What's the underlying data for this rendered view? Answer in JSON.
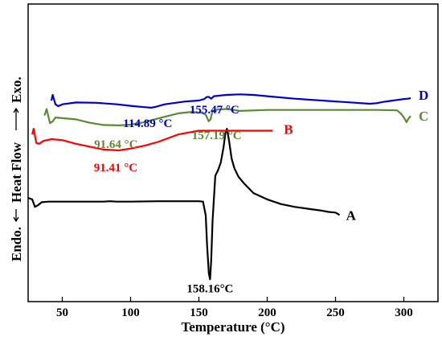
{
  "chart_data": {
    "type": "line",
    "xlabel": "Temperature (°C)",
    "ylabel": "Endo.⟵   Heat Flow   ⟶ Exo.",
    "ylabel_parts": {
      "endo": "Endo.",
      "heat_flow": "Heat Flow",
      "exo": "Exo."
    },
    "xlim": [
      25,
      325
    ],
    "x_ticks": [
      50,
      100,
      150,
      200,
      250,
      300
    ],
    "x_tick_labels": [
      "50",
      "100",
      "150",
      "200",
      "250",
      "300"
    ],
    "y_ticks_shown": false,
    "y_units": "relative heat flow (offset curves)",
    "ylim": [
      0,
      100
    ],
    "series": [
      {
        "name": "A",
        "color": "#000000",
        "points": [
          [
            25,
            45.3
          ],
          [
            28,
            44.5
          ],
          [
            30,
            40.5
          ],
          [
            32,
            41.3
          ],
          [
            35,
            43
          ],
          [
            40,
            43.3
          ],
          [
            50,
            43.3
          ],
          [
            70,
            43.3
          ],
          [
            80,
            43.3
          ],
          [
            85,
            43.5
          ],
          [
            90,
            43.3
          ],
          [
            100,
            43.3
          ],
          [
            120,
            43.5
          ],
          [
            140,
            43.5
          ],
          [
            150,
            43.5
          ],
          [
            153,
            43.3
          ],
          [
            155,
            36
          ],
          [
            156,
            20
          ],
          [
            157.3,
            5
          ],
          [
            158.16,
            2
          ],
          [
            159,
            12
          ],
          [
            160,
            33
          ],
          [
            162,
            57
          ],
          [
            164,
            60
          ],
          [
            166,
            64
          ],
          [
            168,
            72
          ],
          [
            169.5,
            80
          ],
          [
            170.5,
            82
          ],
          [
            172,
            76
          ],
          [
            174,
            66
          ],
          [
            176,
            61
          ],
          [
            179,
            56.5
          ],
          [
            183,
            53
          ],
          [
            190,
            47.8
          ],
          [
            200,
            44.5
          ],
          [
            210,
            42
          ],
          [
            220,
            40.5
          ],
          [
            230,
            39.5
          ],
          [
            240,
            38.5
          ],
          [
            245,
            37.8
          ],
          [
            250,
            37.5
          ],
          [
            253,
            36.2
          ]
        ],
        "annotations": [
          {
            "x": 158.16,
            "label": "158.16°C"
          }
        ]
      },
      {
        "name": "B",
        "color": "#ff0000",
        "points": [
          [
            28,
            79
          ],
          [
            29,
            82
          ],
          [
            31,
            74.5
          ],
          [
            33,
            74
          ],
          [
            36,
            75.5
          ],
          [
            42,
            76.5
          ],
          [
            50,
            76
          ],
          [
            60,
            74
          ],
          [
            70,
            72.5
          ],
          [
            80,
            71
          ],
          [
            91.41,
            70.5
          ],
          [
            100,
            71.5
          ],
          [
            110,
            73
          ],
          [
            120,
            75
          ],
          [
            135,
            79
          ],
          [
            150,
            81
          ],
          [
            160,
            81
          ],
          [
            180,
            81
          ],
          [
            204,
            81
          ]
        ],
        "annotations": [
          {
            "x": 91.41,
            "label": "91.41 °C"
          }
        ]
      },
      {
        "name": "C",
        "color": "#5a8a32",
        "points": [
          [
            37,
            89
          ],
          [
            38.5,
            92.5
          ],
          [
            41,
            85
          ],
          [
            43,
            86
          ],
          [
            45,
            88
          ],
          [
            60,
            87
          ],
          [
            70,
            85.2
          ],
          [
            80,
            84
          ],
          [
            91.64,
            83.8
          ],
          [
            100,
            84.2
          ],
          [
            110,
            85.5
          ],
          [
            120,
            87.5
          ],
          [
            135,
            90.2
          ],
          [
            145,
            91
          ],
          [
            152,
            90.5
          ],
          [
            155,
            89.5
          ],
          [
            157.19,
            86
          ],
          [
            158.5,
            87
          ],
          [
            160,
            91.5
          ],
          [
            163,
            92.2
          ],
          [
            170,
            92.5
          ],
          [
            180,
            91.5
          ],
          [
            200,
            92
          ],
          [
            220,
            92
          ],
          [
            250,
            92
          ],
          [
            280,
            92
          ],
          [
            295,
            91.8
          ],
          [
            298,
            90
          ],
          [
            300,
            88
          ],
          [
            302,
            85.5
          ],
          [
            303,
            87
          ],
          [
            305,
            88.8
          ]
        ],
        "annotations": [
          {
            "x": 91.64,
            "label": "91.64 °C"
          },
          {
            "x": 157.19,
            "label": "157.19 °C"
          }
        ]
      },
      {
        "name": "D",
        "color": "#0000cc",
        "points": [
          [
            42,
            97
          ],
          [
            43,
            100
          ],
          [
            45,
            95
          ],
          [
            47,
            94
          ],
          [
            50,
            95
          ],
          [
            60,
            96
          ],
          [
            75,
            95.8
          ],
          [
            90,
            95
          ],
          [
            100,
            94.2
          ],
          [
            110,
            93.5
          ],
          [
            114.89,
            93.2
          ],
          [
            118,
            93.6
          ],
          [
            125,
            95
          ],
          [
            140,
            96.5
          ],
          [
            150,
            97
          ],
          [
            154,
            97.8
          ],
          [
            155.47,
            98.8
          ],
          [
            157,
            99
          ],
          [
            159,
            98
          ],
          [
            161,
            99.3
          ],
          [
            170,
            100
          ],
          [
            180,
            100.3
          ],
          [
            190,
            100
          ],
          [
            200,
            99.3
          ],
          [
            220,
            98
          ],
          [
            240,
            97
          ],
          [
            255,
            96.3
          ],
          [
            265,
            95.8
          ],
          [
            275,
            95.3
          ],
          [
            280,
            95.6
          ],
          [
            285,
            96.3
          ],
          [
            290,
            96.8
          ],
          [
            295,
            97.3
          ],
          [
            300,
            97.8
          ],
          [
            303,
            98
          ],
          [
            305,
            98.3
          ]
        ],
        "annotations": [
          {
            "x": 114.89,
            "label": "114.89 °C"
          },
          {
            "x": 155.47,
            "label": "155.47 °C"
          }
        ]
      }
    ]
  }
}
